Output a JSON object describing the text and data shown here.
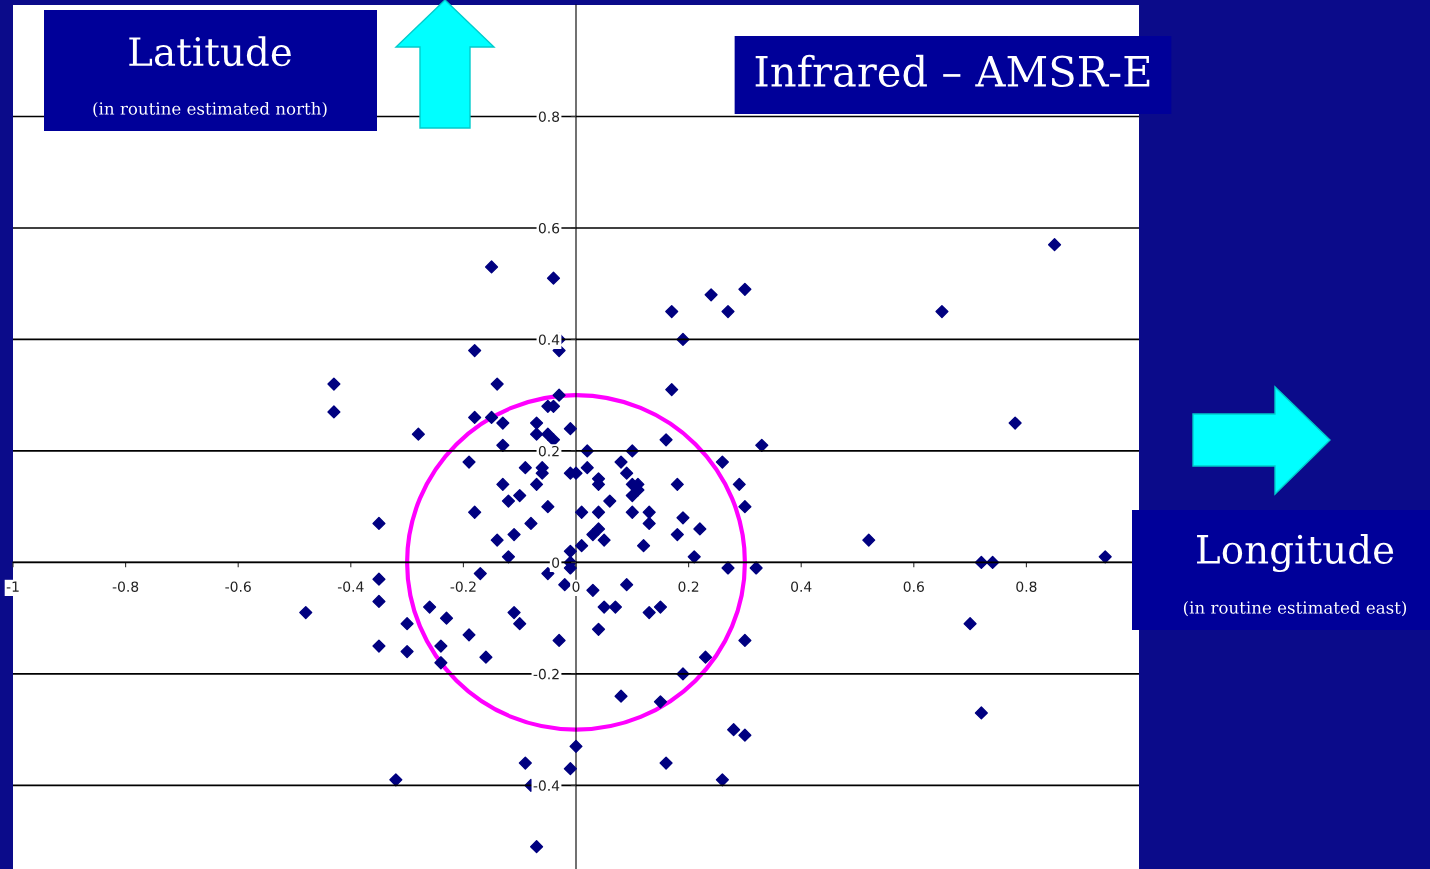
{
  "chart_data": {
    "type": "scatter",
    "title": "Infrared – AMSR-E",
    "annotations": [
      "Latitude",
      "(in routine estimated north)",
      "Longitude",
      "(in routine estimated east)"
    ],
    "xlim": [
      -1,
      1
    ],
    "ylim": [
      -0.55,
      1.0
    ],
    "xticks": [
      {
        "value": -1,
        "label": "-1"
      },
      -0.8,
      -0.6,
      -0.4,
      -0.2,
      {
        "value": 0,
        "label": "0"
      },
      0.2,
      0.4,
      0.6,
      0.8
    ],
    "yticks": [
      -0.4,
      -0.2,
      {
        "value": 0,
        "label": "0"
      },
      0.2,
      0.4,
      0.6,
      0.8
    ],
    "grid": "y",
    "marker": "diamond",
    "series": [
      {
        "color": "#000080",
        "x": [
          0.85,
          0.65,
          0.78,
          0.52,
          0.72,
          0.74,
          0.94,
          0.7,
          0.72,
          0.33,
          0.3,
          0.24,
          0.27,
          0.17,
          0.19,
          0.17,
          0.16,
          0.26,
          0.18,
          0.29,
          0.3,
          0.19,
          0.22,
          0.18,
          0.21,
          0.27,
          0.32,
          0.15,
          0.13,
          0.19,
          0.23,
          0.15,
          0.3,
          0.28,
          0.3,
          0.16,
          0.26,
          0.08,
          0.0,
          -0.01,
          -0.09,
          -0.08,
          -0.07,
          -0.32,
          -0.03,
          0.04,
          0.05,
          0.07,
          0.09,
          0.03,
          0.12,
          0.13,
          0.13,
          0.1,
          0.1,
          0.11,
          0.1,
          0.11,
          0.09,
          0.08,
          0.1,
          0.06,
          0.05,
          0.04,
          0.03,
          0.04,
          0.01,
          0.02,
          0.02,
          0.04,
          0.04,
          -0.01,
          0.0,
          -0.01,
          0.01,
          -0.01,
          -0.01,
          -0.01,
          -0.02,
          -0.03,
          -0.03,
          -0.03,
          -0.04,
          -0.15,
          -0.18,
          -0.14,
          -0.43,
          -0.43,
          -0.28,
          -0.18,
          -0.15,
          -0.13,
          -0.13,
          -0.19,
          -0.04,
          -0.05,
          -0.07,
          -0.07,
          -0.05,
          -0.04,
          -0.06,
          -0.06,
          -0.09,
          -0.07,
          -0.13,
          -0.1,
          -0.12,
          -0.05,
          -0.18,
          -0.35,
          -0.08,
          -0.11,
          -0.14,
          -0.12,
          -0.17,
          -0.35,
          -0.35,
          -0.48,
          -0.26,
          -0.23,
          -0.3,
          -0.35,
          -0.3,
          -0.24,
          -0.24,
          -0.19,
          -0.16,
          -0.11,
          -0.1,
          -0.05
        ],
        "values": [
          0.57,
          0.45,
          0.25,
          0.04,
          0.0,
          0.0,
          0.01,
          -0.11,
          -0.27,
          0.21,
          0.49,
          0.48,
          0.45,
          0.45,
          0.4,
          0.31,
          0.22,
          0.18,
          0.14,
          0.14,
          0.1,
          0.08,
          0.06,
          0.05,
          0.01,
          -0.01,
          -0.01,
          -0.08,
          -0.09,
          -0.2,
          -0.17,
          -0.25,
          -0.14,
          -0.3,
          -0.31,
          -0.36,
          -0.39,
          -0.24,
          -0.33,
          -0.37,
          -0.36,
          -0.4,
          -0.51,
          -0.39,
          -0.14,
          -0.12,
          -0.08,
          -0.08,
          -0.04,
          -0.05,
          0.03,
          0.09,
          0.07,
          0.09,
          0.12,
          0.13,
          0.14,
          0.14,
          0.16,
          0.18,
          0.2,
          0.11,
          0.04,
          0.06,
          0.05,
          0.09,
          0.09,
          0.2,
          0.17,
          0.15,
          0.14,
          0.16,
          0.16,
          0.24,
          0.03,
          0.02,
          0.0,
          -0.01,
          -0.04,
          0.3,
          0.38,
          0.4,
          0.51,
          0.53,
          0.38,
          0.32,
          0.32,
          0.27,
          0.23,
          0.26,
          0.26,
          0.25,
          0.21,
          0.18,
          0.28,
          0.28,
          0.25,
          0.23,
          0.23,
          0.22,
          0.17,
          0.16,
          0.17,
          0.14,
          0.14,
          0.12,
          0.11,
          0.1,
          0.09,
          0.07,
          0.07,
          0.05,
          0.04,
          0.01,
          -0.02,
          -0.03,
          -0.07,
          -0.09,
          -0.08,
          -0.1,
          -0.11,
          -0.15,
          -0.16,
          -0.15,
          -0.18,
          -0.13,
          -0.17,
          -0.09,
          -0.11,
          -0.02
        ]
      }
    ]
  }
}
